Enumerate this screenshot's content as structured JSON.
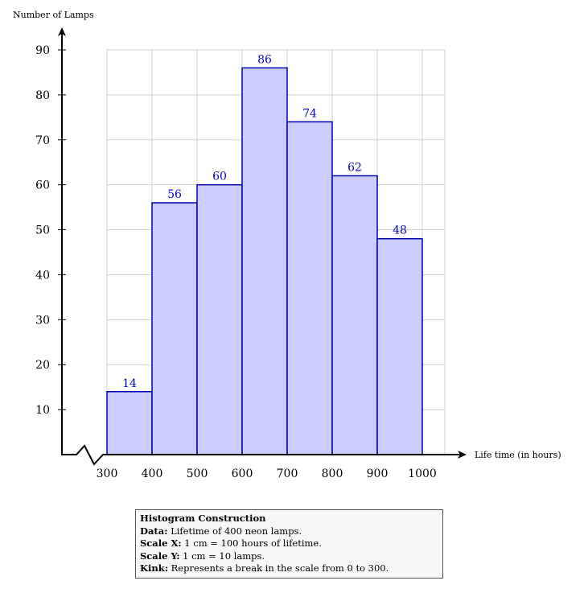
{
  "chart_data": {
    "type": "bar",
    "histogram": true,
    "bins": [
      [
        300,
        400
      ],
      [
        400,
        500
      ],
      [
        500,
        600
      ],
      [
        600,
        700
      ],
      [
        700,
        800
      ],
      [
        800,
        900
      ],
      [
        900,
        1000
      ]
    ],
    "values": [
      14,
      56,
      60,
      86,
      74,
      62,
      48
    ],
    "xlabel": "Life time (in hours)",
    "ylabel": "Number of Lamps",
    "x_ticks": [
      "300",
      "400",
      "500",
      "600",
      "700",
      "800",
      "900",
      "1000"
    ],
    "y_ticks": [
      "10",
      "20",
      "30",
      "40",
      "50",
      "60",
      "70",
      "80",
      "90"
    ],
    "xlim": [
      300,
      1000
    ],
    "ylim": [
      0,
      90
    ],
    "grid": true,
    "axis_break": "x from 0 to 300 (kink)",
    "colors": {
      "bar_fill": "#ccccff",
      "bar_stroke": "#0000aa",
      "label": "#0000cc",
      "grid": "#d0d0d0"
    }
  },
  "info": {
    "title": "Histogram Construction",
    "lines": [
      {
        "key": "Data:",
        "text": "Lifetime of 400 neon lamps."
      },
      {
        "key": "Scale X:",
        "text": "1 cm = 100 hours of lifetime."
      },
      {
        "key": "Scale Y:",
        "text": "1 cm = 10 lamps."
      },
      {
        "key": "Kink:",
        "text": "Represents a break in the scale from 0 to 300."
      }
    ]
  }
}
